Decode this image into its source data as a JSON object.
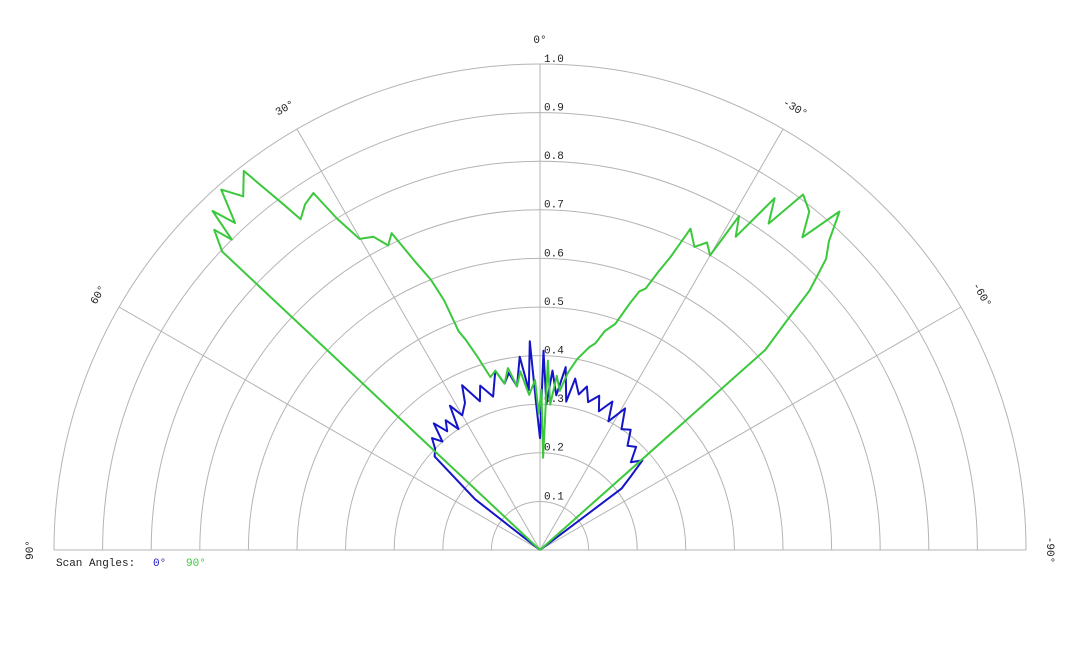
{
  "chart_data": {
    "type": "polar",
    "rlim": [
      0,
      1
    ],
    "rticks": [
      0.1,
      0.2,
      0.3,
      0.4,
      0.5,
      0.6,
      0.7,
      0.8,
      0.9,
      {
        "value": 1,
        "label": "1.0"
      }
    ],
    "thetaticks": [
      {
        "value": 90,
        "label": "90°"
      },
      {
        "value": 60,
        "label": "60°"
      },
      {
        "value": 30,
        "label": "30°"
      },
      {
        "value": 0,
        "label": "0°"
      },
      {
        "value": -30,
        "label": "-30°"
      },
      {
        "value": -60,
        "label": "-60°"
      },
      {
        "value": -90,
        "label": "-90°"
      }
    ],
    "legend_title": "Scan Angles:",
    "series": [
      {
        "name": "0°",
        "color": "#1414c8",
        "theta": [
          0,
          52,
          50,
          48.4,
          46,
          44,
          42,
          40,
          38,
          36,
          34,
          32,
          30,
          27,
          25.3,
          22,
          20,
          17,
          14,
          12,
          10,
          8,
          6,
          4,
          2.8,
          1.5,
          0,
          -1,
          -2.5,
          -4,
          -6,
          -8,
          -10,
          -11.6,
          -14,
          -16,
          -18,
          -21,
          -23,
          -26,
          -28,
          -31,
          -34,
          -37,
          -40,
          -43,
          -46,
          -48.8,
          -51,
          -53,
          -53
        ],
        "values": [
          0,
          0.17,
          0.22,
          0.29,
          0.3,
          0.32,
          0.3,
          0.34,
          0.31,
          0.33,
          0.3,
          0.35,
          0.32,
          0.34,
          0.375,
          0.33,
          0.36,
          0.33,
          0.38,
          0.35,
          0.37,
          0.34,
          0.4,
          0.33,
          0.43,
          0.3,
          0.23,
          0.41,
          0.3,
          0.37,
          0.32,
          0.38,
          0.31,
          0.36,
          0.33,
          0.35,
          0.32,
          0.34,
          0.31,
          0.34,
          0.3,
          0.34,
          0.3,
          0.31,
          0.28,
          0.29,
          0.26,
          0.28,
          0.24,
          0.21,
          0
        ]
      },
      {
        "name": "90°",
        "color": "#3cc83c",
        "theta": [
          0,
          46.8,
          45.5,
          44.8,
          44,
          43,
          41.5,
          40,
          38,
          36.5,
          35.9,
          34.2,
          32.4,
          31.5,
          30.1,
          28,
          26.5,
          25.1,
          23.5,
          22,
          21,
          20.4,
          19.5,
          18,
          16,
          14,
          12,
          10,
          8,
          6.3,
          4,
          1.7,
          0.5,
          -0.5,
          -1.9,
          -2.4,
          -4,
          -5.5,
          -7.1,
          -9,
          -11,
          -13.7,
          -15,
          -16.5,
          -18.4,
          -20,
          -21,
          -22,
          -23,
          -24,
          -25.1,
          -27,
          -28.5,
          -30,
          -30.8,
          -32,
          -33.7,
          -35,
          -36.5,
          -38.5,
          -40,
          -41.5,
          -43.1,
          -44.5,
          -46.1,
          -47,
          -48.4,
          -48.4
        ],
        "values": [
          0,
          0.897,
          0.94,
          0.9,
          0.97,
          0.92,
          0.99,
          0.95,
          0.99,
          0.88,
          0.84,
          0.86,
          0.87,
          0.8,
          0.74,
          0.73,
          0.7,
          0.72,
          0.65,
          0.6,
          0.55,
          0.48,
          0.46,
          0.42,
          0.37,
          0.38,
          0.35,
          0.38,
          0.34,
          0.37,
          0.32,
          0.35,
          0.28,
          0.33,
          0.19,
          0.39,
          0.3,
          0.36,
          0.33,
          0.37,
          0.4,
          0.43,
          0.44,
          0.47,
          0.49,
          0.54,
          0.57,
          0.58,
          0.62,
          0.66,
          0.73,
          0.7,
          0.72,
          0.7,
          0.8,
          0.76,
          0.87,
          0.82,
          0.91,
          0.89,
          0.84,
          0.93,
          0.87,
          0.84,
          0.77,
          0.7,
          0.62,
          0
        ]
      }
    ]
  }
}
